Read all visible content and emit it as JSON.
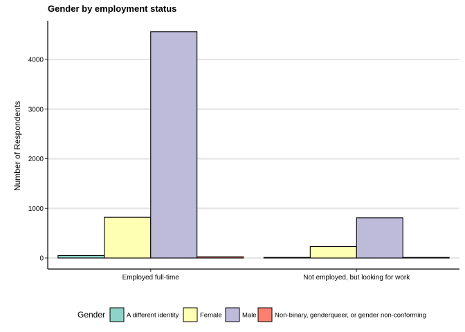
{
  "chart_data": {
    "type": "bar",
    "title": "Gender by employment status",
    "xlabel": "",
    "ylabel": "Number of Respondents",
    "ylim": [
      -200,
      4800
    ],
    "yticks": [
      0,
      1000,
      2000,
      3000,
      4000
    ],
    "grid": "horizontal major",
    "legend_position": "bottom",
    "legend_title": "Gender",
    "categories": [
      "Employed full-time",
      "Not employed, but looking for work"
    ],
    "series": [
      {
        "name": "A different identity",
        "color": "#8DD3C7",
        "values": [
          50,
          5
        ]
      },
      {
        "name": "Female",
        "color": "#FFFFB3",
        "values": [
          820,
          230
        ]
      },
      {
        "name": "Male",
        "color": "#BEBADA",
        "values": [
          4560,
          810
        ]
      },
      {
        "name": "Non-binary, genderqueer, or gender non-conforming",
        "color": "#FB8072",
        "values": [
          25,
          8
        ]
      }
    ]
  }
}
